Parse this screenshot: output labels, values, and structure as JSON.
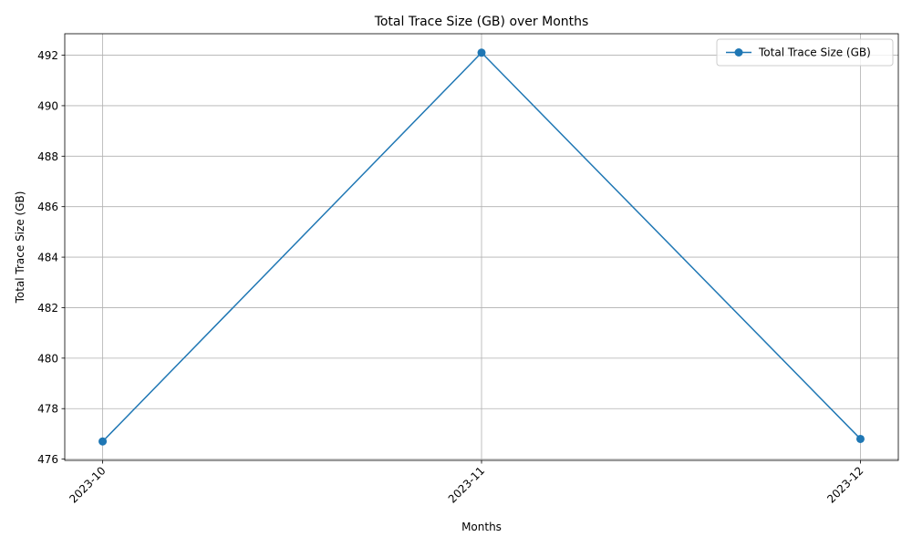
{
  "chart_data": {
    "type": "line",
    "title": "Total Trace Size (GB) over Months",
    "xlabel": "Months",
    "ylabel": "Total Trace Size (GB)",
    "categories": [
      "2023-10",
      "2023-11",
      "2023-12"
    ],
    "series": [
      {
        "name": "Total Trace Size (GB)",
        "values": [
          476.7,
          492.1,
          476.8
        ],
        "color": "#1f77b4",
        "marker": "circle"
      }
    ],
    "ylim": [
      475.95,
      492.85
    ],
    "yticks": [
      476,
      478,
      480,
      482,
      484,
      486,
      488,
      490,
      492
    ],
    "grid": true,
    "legend_position": "top-right",
    "x_tick_rotation": 45
  }
}
